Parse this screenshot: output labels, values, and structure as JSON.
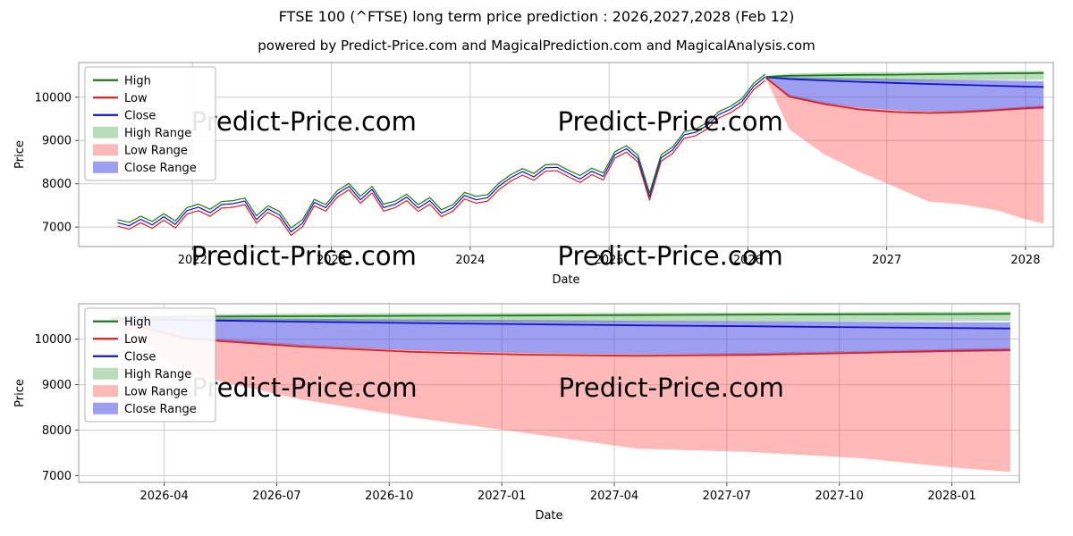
{
  "page": {
    "title": "FTSE 100 (^FTSE) long term price prediction : 2026,2027,2028 (Feb 12)",
    "subtitle": "powered by Predict-Price.com and MagicalPrediction.com and MagicalAnalysis.com",
    "watermark": "Predict-Price.com",
    "background": "#ffffff"
  },
  "colors": {
    "high": "#1a7a1a",
    "low": "#d62222",
    "close": "#1414cc",
    "high_range": "rgba(40,150,40,0.32)",
    "low_range": "rgba(255,70,70,0.38)",
    "close_range": "rgba(70,70,230,0.52)",
    "grid": "#cccccc",
    "spine": "#9a9a9a",
    "watermark": "rgba(128,128,128,0.45)"
  },
  "legend": [
    {
      "label": "High",
      "swatch": "line",
      "color_key": "high"
    },
    {
      "label": "Low",
      "swatch": "line",
      "color_key": "low"
    },
    {
      "label": "Close",
      "swatch": "line",
      "color_key": "close"
    },
    {
      "label": "High Range",
      "swatch": "patch",
      "color_key": "high_range"
    },
    {
      "label": "Low Range",
      "swatch": "patch",
      "color_key": "low_range"
    },
    {
      "label": "Close Range",
      "swatch": "patch",
      "color_key": "close_range"
    }
  ],
  "chart_data": [
    {
      "type": "line",
      "name": "top-chart",
      "title": "",
      "xlabel": "Date",
      "ylabel": "Price",
      "xlim": [
        2021.18,
        2028.2
      ],
      "ylim": [
        6550,
        10800
      ],
      "yticks": [
        7000,
        8000,
        9000,
        10000
      ],
      "xticks": [
        {
          "v": 2022,
          "label": "2022"
        },
        {
          "v": 2023,
          "label": "2023"
        },
        {
          "v": 2024,
          "label": "2024"
        },
        {
          "v": 2025,
          "label": "2025"
        },
        {
          "v": 2026,
          "label": "2026"
        },
        {
          "v": 2027,
          "label": "2027"
        },
        {
          "v": 2028,
          "label": "2028"
        }
      ],
      "history": {
        "x_start": 2021.46,
        "x_step": 0.0833,
        "close": [
          7100,
          7030,
          7180,
          7050,
          7240,
          7060,
          7380,
          7460,
          7330,
          7520,
          7540,
          7600,
          7170,
          7420,
          7280,
          6890,
          7090,
          7570,
          7450,
          7770,
          7940,
          7630,
          7870,
          7450,
          7530,
          7690,
          7440,
          7610,
          7320,
          7450,
          7730,
          7630,
          7680,
          7950,
          8140,
          8280,
          8160,
          8370,
          8380,
          8240,
          8110,
          8290,
          8170,
          8670,
          8810,
          8580,
          7700,
          8600,
          8780,
          9130,
          9190,
          9350,
          9600,
          9720,
          9900,
          10250,
          10470
        ],
        "high": [
          7170,
          7110,
          7250,
          7130,
          7310,
          7140,
          7450,
          7530,
          7410,
          7590,
          7610,
          7670,
          7260,
          7490,
          7360,
          6980,
          7170,
          7640,
          7520,
          7840,
          8010,
          7710,
          7940,
          7530,
          7600,
          7760,
          7520,
          7680,
          7400,
          7520,
          7800,
          7710,
          7750,
          8020,
          8210,
          8350,
          8240,
          8440,
          8450,
          8310,
          8190,
          8360,
          8250,
          8740,
          8880,
          8660,
          7790,
          8670,
          8850,
          9200,
          9260,
          9420,
          9670,
          9790,
          9970,
          10320,
          10530
        ],
        "low": [
          7020,
          6950,
          7100,
          6970,
          7160,
          6980,
          7300,
          7380,
          7250,
          7440,
          7460,
          7520,
          7090,
          7340,
          7200,
          6810,
          7010,
          7490,
          7370,
          7690,
          7860,
          7550,
          7790,
          7370,
          7450,
          7610,
          7360,
          7530,
          7240,
          7370,
          7650,
          7550,
          7600,
          7870,
          8060,
          8200,
          8080,
          8290,
          8300,
          8160,
          8030,
          8210,
          8090,
          8590,
          8730,
          8500,
          7620,
          8520,
          8700,
          9050,
          9110,
          9270,
          9520,
          9640,
          9820,
          10170,
          10390
        ]
      },
      "forecast": {
        "x": [
          2026.13,
          2026.3,
          2026.55,
          2026.8,
          2027.05,
          2027.3,
          2027.55,
          2027.8,
          2028.0,
          2028.13
        ],
        "high": [
          10470,
          10495,
          10505,
          10515,
          10520,
          10530,
          10540,
          10548,
          10553,
          10558
        ],
        "high_hi": [
          10490,
          10545,
          10565,
          10575,
          10580,
          10585,
          10592,
          10600,
          10605,
          10610
        ],
        "high_lo": [
          10450,
          10420,
          10400,
          10390,
          10385,
          10385,
          10390,
          10395,
          10400,
          10405
        ],
        "close": [
          10460,
          10420,
          10385,
          10355,
          10330,
          10305,
          10285,
          10262,
          10245,
          10235
        ],
        "close_hi": [
          10475,
          10465,
          10450,
          10435,
          10420,
          10405,
          10395,
          10385,
          10375,
          10370
        ],
        "close_lo": [
          10445,
          10020,
          9860,
          9760,
          9700,
          9670,
          9670,
          9690,
          9715,
          9730
        ],
        "low": [
          10450,
          10010,
          9840,
          9720,
          9660,
          9635,
          9655,
          9700,
          9745,
          9765
        ],
        "low_hi": [
          10455,
          10060,
          9890,
          9770,
          9705,
          9680,
          9700,
          9745,
          9790,
          9810
        ],
        "low_lo": [
          10430,
          9250,
          8680,
          8280,
          7940,
          7590,
          7520,
          7380,
          7180,
          7080
        ]
      },
      "watermarks": [
        [
          0.231,
          0.37
        ],
        [
          0.607,
          0.37
        ],
        [
          0.231,
          1.1
        ],
        [
          0.607,
          1.1
        ]
      ]
    },
    {
      "type": "line",
      "name": "bottom-chart",
      "title": "",
      "xlabel": "Date",
      "ylabel": "Price",
      "xlim": [
        2026.06,
        2028.15
      ],
      "ylim": [
        6850,
        10780
      ],
      "yticks": [
        7000,
        8000,
        9000,
        10000
      ],
      "xticks": [
        {
          "v": 2026.25,
          "label": "2026-04"
        },
        {
          "v": 2026.5,
          "label": "2026-07"
        },
        {
          "v": 2026.75,
          "label": "2026-10"
        },
        {
          "v": 2027.0,
          "label": "2027-01"
        },
        {
          "v": 2027.25,
          "label": "2027-04"
        },
        {
          "v": 2027.5,
          "label": "2027-07"
        },
        {
          "v": 2027.75,
          "label": "2027-10"
        },
        {
          "v": 2028.0,
          "label": "2028-01"
        }
      ],
      "forecast": {
        "x": [
          2026.13,
          2026.3,
          2026.55,
          2026.8,
          2027.05,
          2027.3,
          2027.55,
          2027.8,
          2028.0,
          2028.13
        ],
        "high": [
          10470,
          10495,
          10505,
          10515,
          10520,
          10530,
          10540,
          10548,
          10553,
          10558
        ],
        "high_hi": [
          10490,
          10545,
          10565,
          10575,
          10580,
          10585,
          10592,
          10600,
          10605,
          10610
        ],
        "high_lo": [
          10450,
          10420,
          10400,
          10390,
          10385,
          10385,
          10390,
          10395,
          10400,
          10405
        ],
        "close": [
          10460,
          10420,
          10385,
          10355,
          10330,
          10305,
          10285,
          10262,
          10245,
          10235
        ],
        "close_hi": [
          10475,
          10465,
          10450,
          10435,
          10420,
          10405,
          10395,
          10385,
          10375,
          10370
        ],
        "close_lo": [
          10445,
          10020,
          9860,
          9760,
          9700,
          9670,
          9670,
          9690,
          9715,
          9730
        ],
        "low": [
          10450,
          10010,
          9840,
          9720,
          9660,
          9635,
          9655,
          9700,
          9745,
          9765
        ],
        "low_hi": [
          10455,
          10060,
          9890,
          9770,
          9705,
          9680,
          9700,
          9745,
          9790,
          9810
        ],
        "low_lo": [
          10430,
          9250,
          8680,
          8280,
          7940,
          7590,
          7520,
          7380,
          7180,
          7080
        ]
      },
      "watermarks": [
        [
          0.24,
          0.52
        ],
        [
          0.63,
          0.52
        ]
      ]
    }
  ]
}
